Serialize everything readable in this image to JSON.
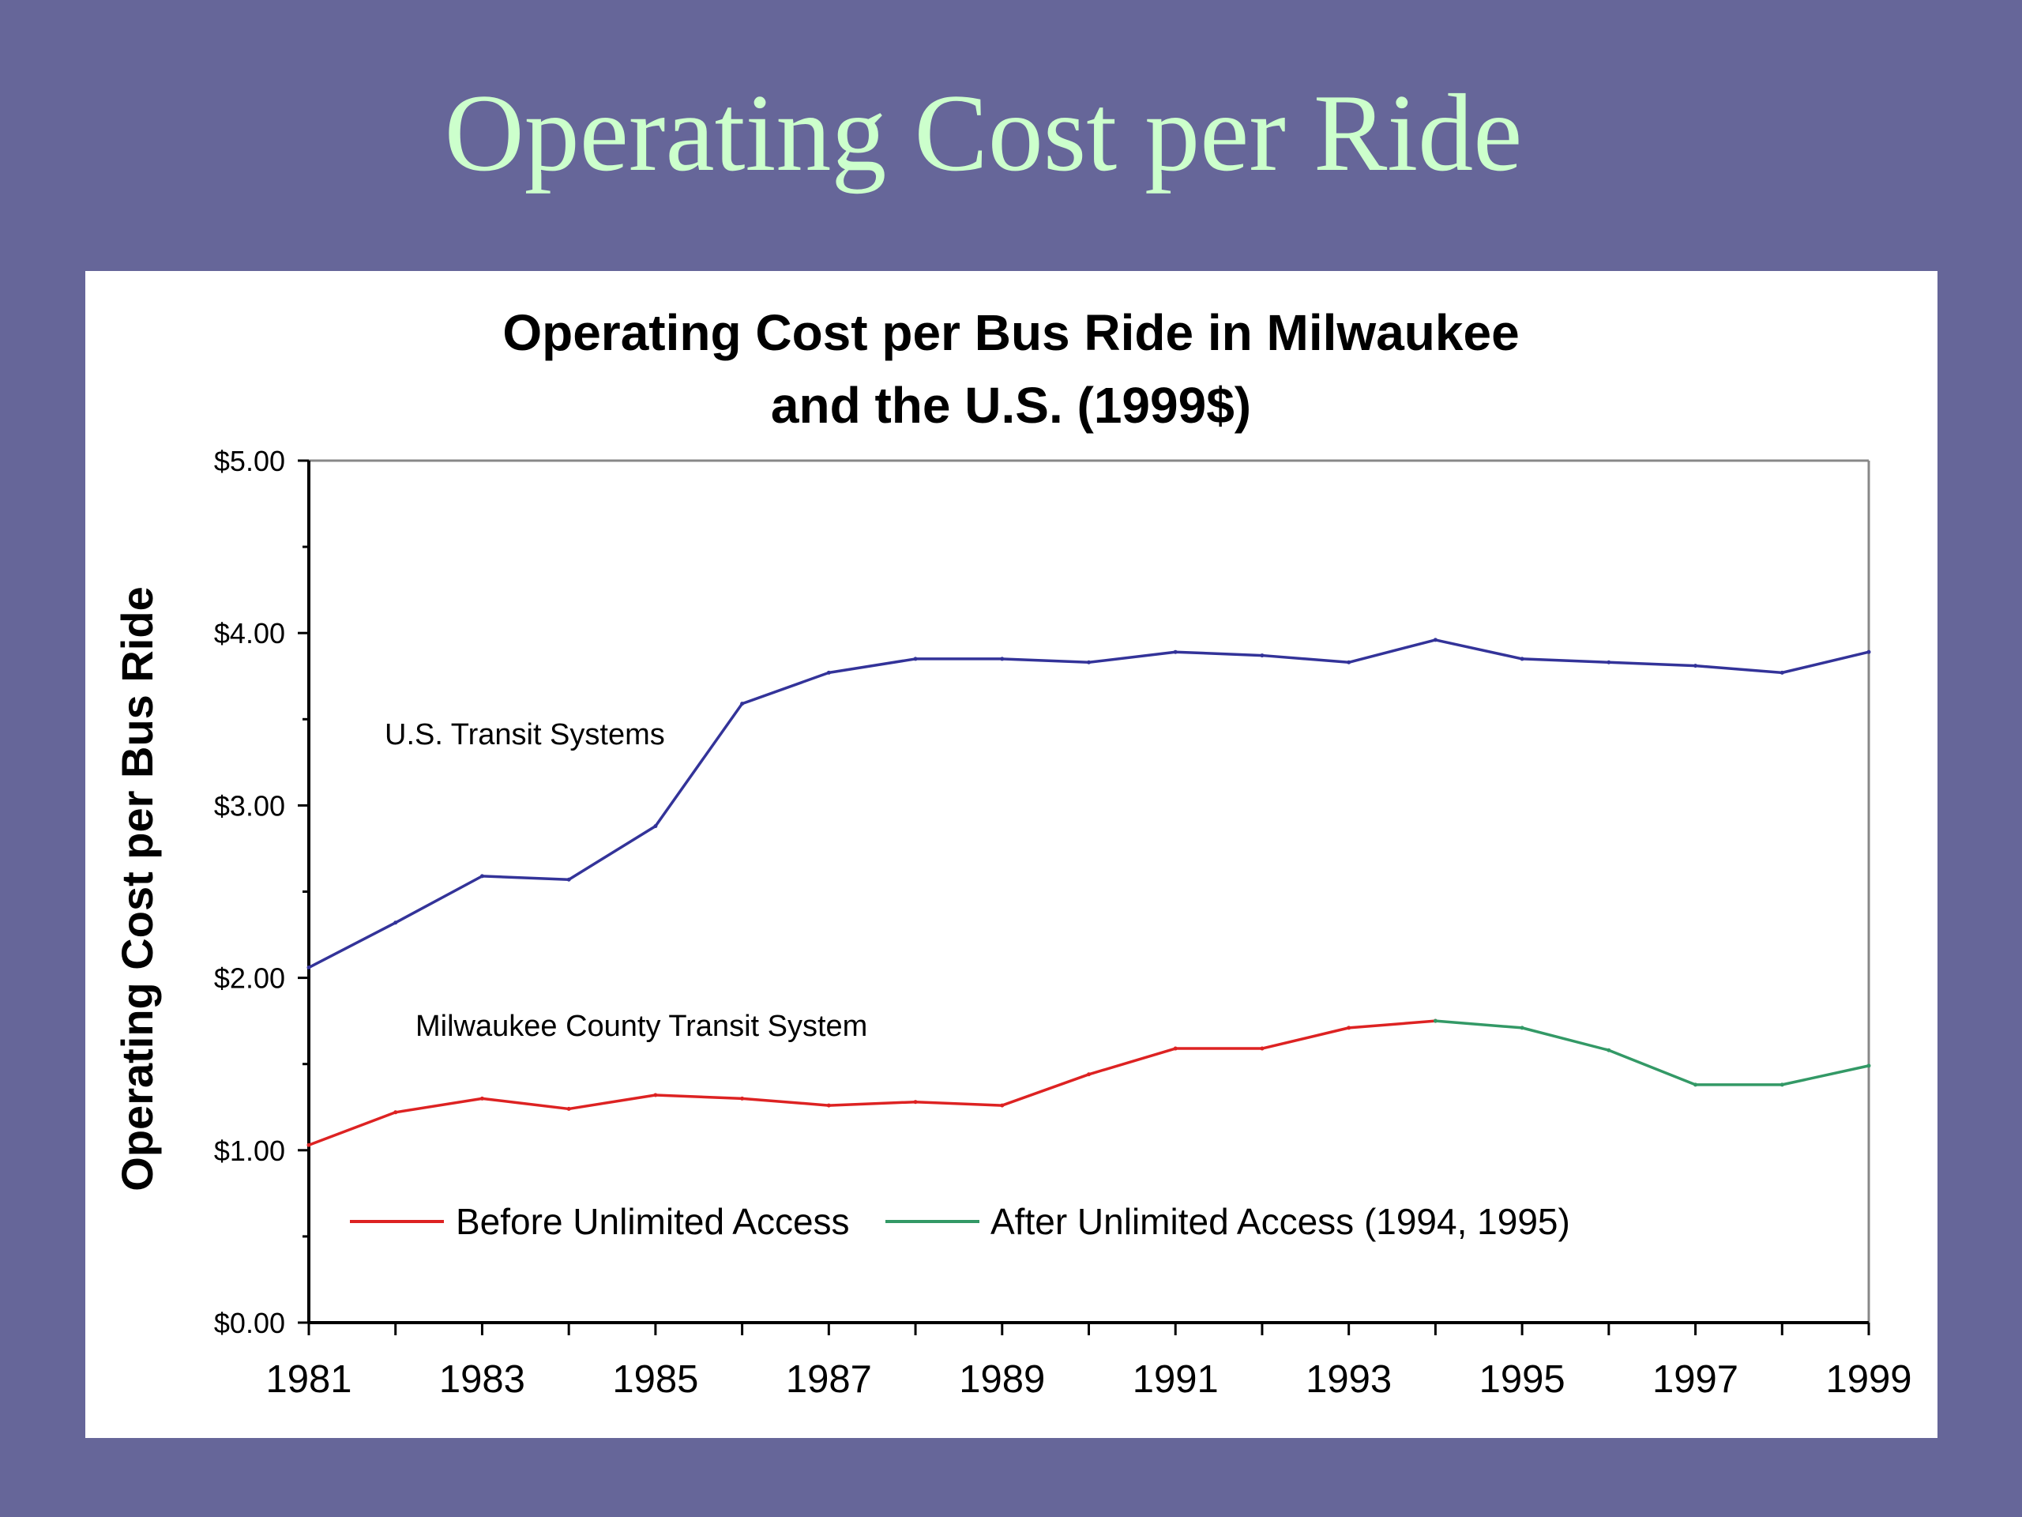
{
  "slide": {
    "title": "Operating Cost per Ride",
    "background_color": "#666699",
    "title_color": "#ccffcc"
  },
  "chart_data": {
    "type": "line",
    "title_lines": [
      "Operating Cost per Bus Ride in Milwaukee",
      "and the U.S. (1999$)"
    ],
    "ylabel": "Operating Cost per Bus Ride",
    "xlabel": "",
    "ylim": [
      0,
      5
    ],
    "y_ticks": [
      "$0.00",
      "$1.00",
      "$2.00",
      "$3.00",
      "$4.00",
      "$5.00"
    ],
    "x_ticks": [
      "1981",
      "1983",
      "1985",
      "1987",
      "1989",
      "1991",
      "1993",
      "1995",
      "1997",
      "1999"
    ],
    "x": [
      1981,
      1982,
      1983,
      1984,
      1985,
      1986,
      1987,
      1988,
      1989,
      1990,
      1991,
      1992,
      1993,
      1994,
      1995,
      1996,
      1997,
      1998,
      1999
    ],
    "series": [
      {
        "name": "U.S. Transit Systems",
        "color": "#333399",
        "x": [
          1981,
          1982,
          1983,
          1984,
          1985,
          1986,
          1987,
          1988,
          1989,
          1990,
          1991,
          1992,
          1993,
          1994,
          1995,
          1996,
          1997,
          1998,
          1999
        ],
        "values": [
          2.06,
          2.32,
          2.59,
          2.57,
          2.88,
          3.59,
          3.77,
          3.85,
          3.85,
          3.83,
          3.89,
          3.87,
          3.83,
          3.96,
          3.85,
          3.83,
          3.81,
          3.77,
          3.89
        ]
      },
      {
        "name": "Before Unlimited Access",
        "color": "#dd2222",
        "x": [
          1981,
          1982,
          1983,
          1984,
          1985,
          1986,
          1987,
          1988,
          1989,
          1990,
          1991,
          1992,
          1993,
          1994
        ],
        "values": [
          1.03,
          1.22,
          1.3,
          1.24,
          1.32,
          1.3,
          1.26,
          1.28,
          1.26,
          1.44,
          1.59,
          1.59,
          1.71,
          1.75
        ]
      },
      {
        "name": "After Unlimited Access (1994, 1995)",
        "color": "#339966",
        "x": [
          1994,
          1995,
          1996,
          1997,
          1998,
          1999
        ],
        "values": [
          1.75,
          1.71,
          1.58,
          1.38,
          1.38,
          1.49
        ]
      }
    ],
    "annotations": [
      "U.S. Transit Systems",
      "Milwaukee County Transit System"
    ],
    "legend": {
      "position": "bottom-inside",
      "entries": [
        "Before Unlimited Access",
        "After Unlimited Access (1994, 1995)"
      ]
    },
    "grid": false
  }
}
